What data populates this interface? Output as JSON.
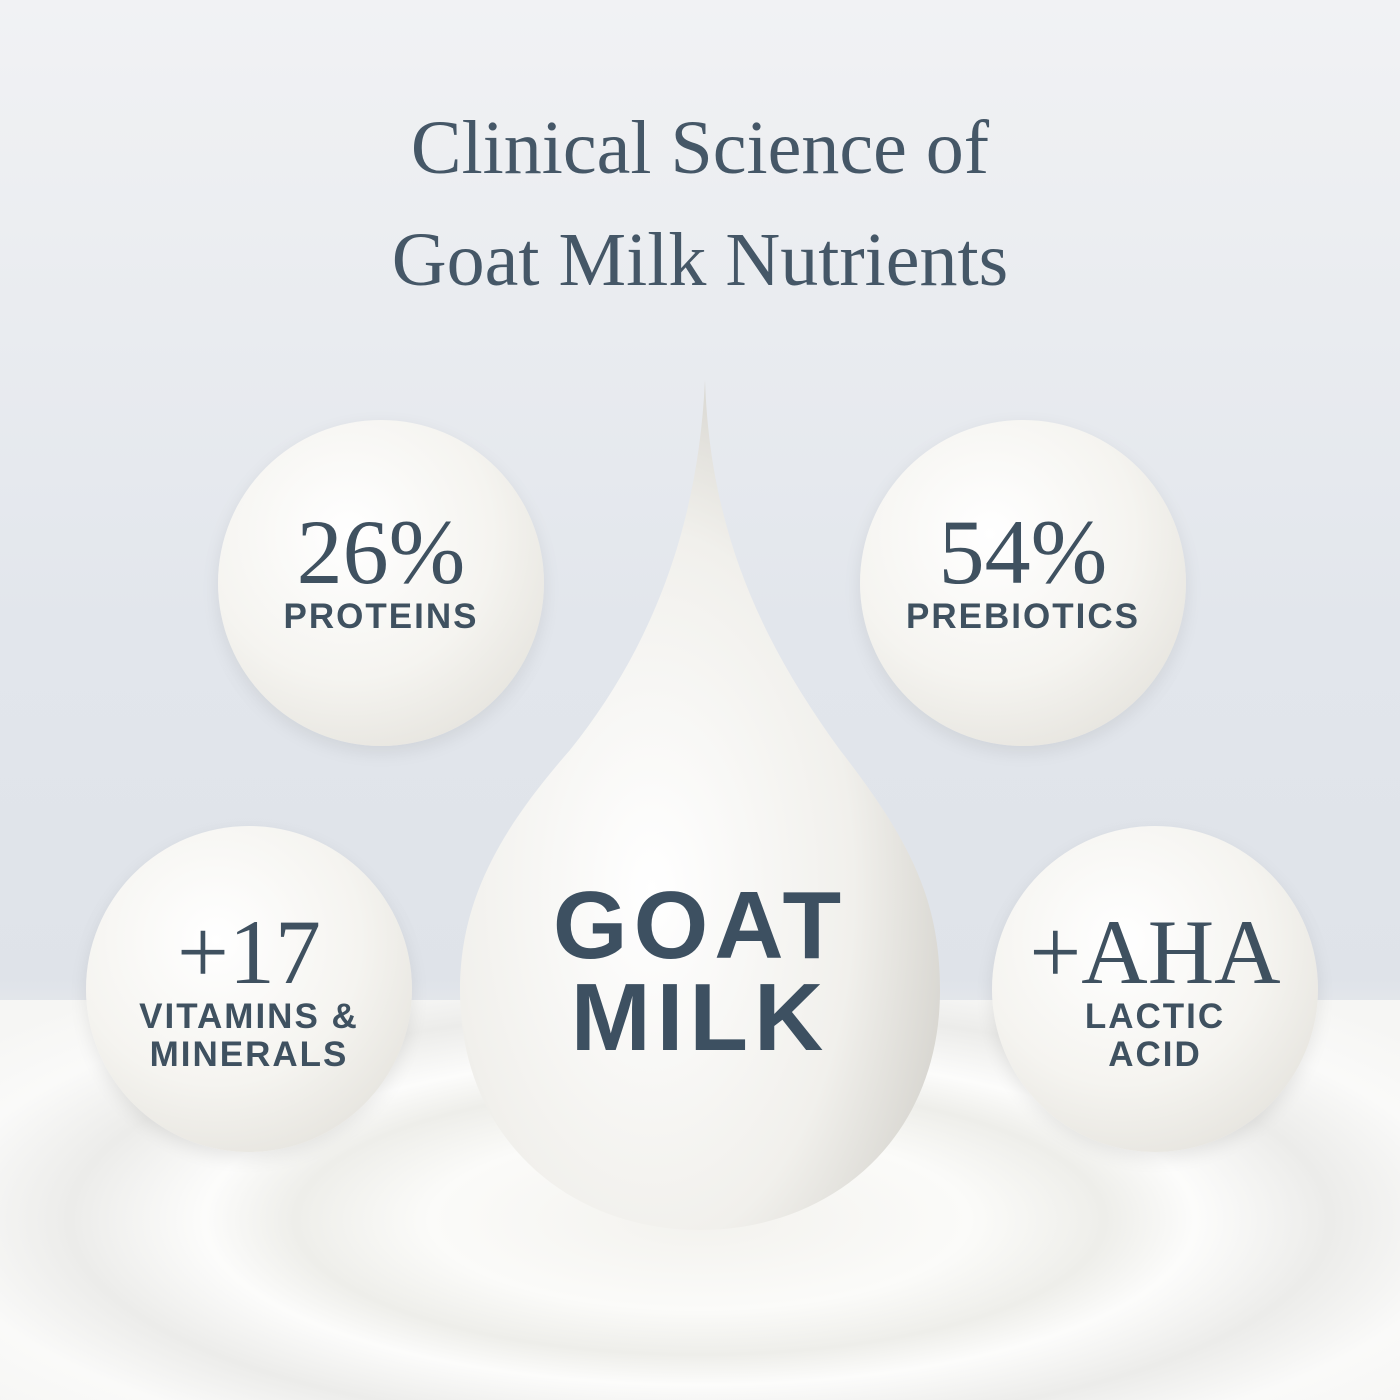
{
  "title": {
    "line1": "Clinical Science of",
    "line2": "Goat Milk Nutrients"
  },
  "center": {
    "line1": "GOAT",
    "line2": "MILK"
  },
  "bubbles": [
    {
      "value": "26%",
      "label1": "PROTEINS",
      "label2": ""
    },
    {
      "value": "54%",
      "label1": "PREBIOTICS",
      "label2": ""
    },
    {
      "value": "+17",
      "label1": "VITAMINS &",
      "label2": "MINERALS"
    },
    {
      "value": "+AHA",
      "label1": "LACTIC",
      "label2": "ACID"
    }
  ],
  "colors": {
    "text": "#3f5160"
  }
}
